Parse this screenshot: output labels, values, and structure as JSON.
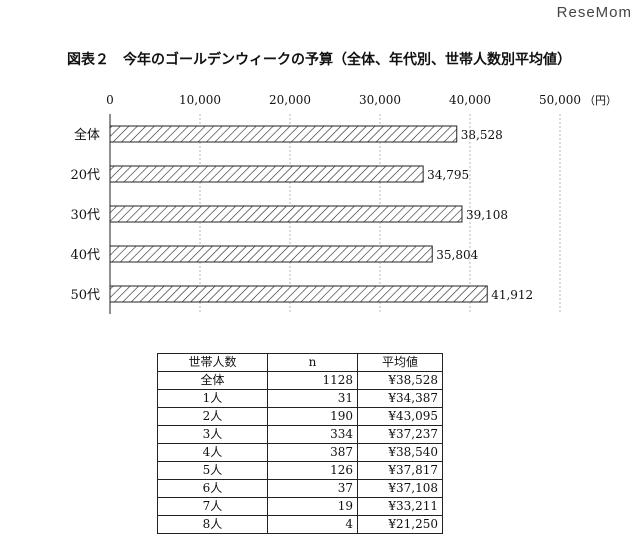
{
  "watermark": "ReseMom",
  "chart_data": {
    "type": "bar",
    "orientation": "horizontal",
    "title": "図表２　今年のゴールデンウィークの予算（全体、年代別、世帯人数別平均値）",
    "categories": [
      "全体",
      "20代",
      "30代",
      "40代",
      "50代"
    ],
    "values": [
      38528,
      34795,
      39108,
      35804,
      41912
    ],
    "value_labels": [
      "38,528",
      "34,795",
      "39,108",
      "35,804",
      "41,912"
    ],
    "xlim": [
      0,
      50000
    ],
    "x_ticks": [
      0,
      10000,
      20000,
      30000,
      40000,
      50000
    ],
    "x_tick_labels": [
      "0",
      "10,000",
      "20,000",
      "30,000",
      "40,000",
      "50,000"
    ],
    "unit": "（円）",
    "grid": true,
    "bar_fill": "hatched"
  },
  "table": {
    "headers": [
      "世帯人数",
      "n",
      "平均値"
    ],
    "rows": [
      [
        "全体",
        "1128",
        "¥38,528"
      ],
      [
        "1人",
        "31",
        "¥34,387"
      ],
      [
        "2人",
        "190",
        "¥43,095"
      ],
      [
        "3人",
        "334",
        "¥37,237"
      ],
      [
        "4人",
        "387",
        "¥38,540"
      ],
      [
        "5人",
        "126",
        "¥37,817"
      ],
      [
        "6人",
        "37",
        "¥37,108"
      ],
      [
        "7人",
        "19",
        "¥33,211"
      ],
      [
        "8人",
        "4",
        "¥21,250"
      ]
    ]
  }
}
